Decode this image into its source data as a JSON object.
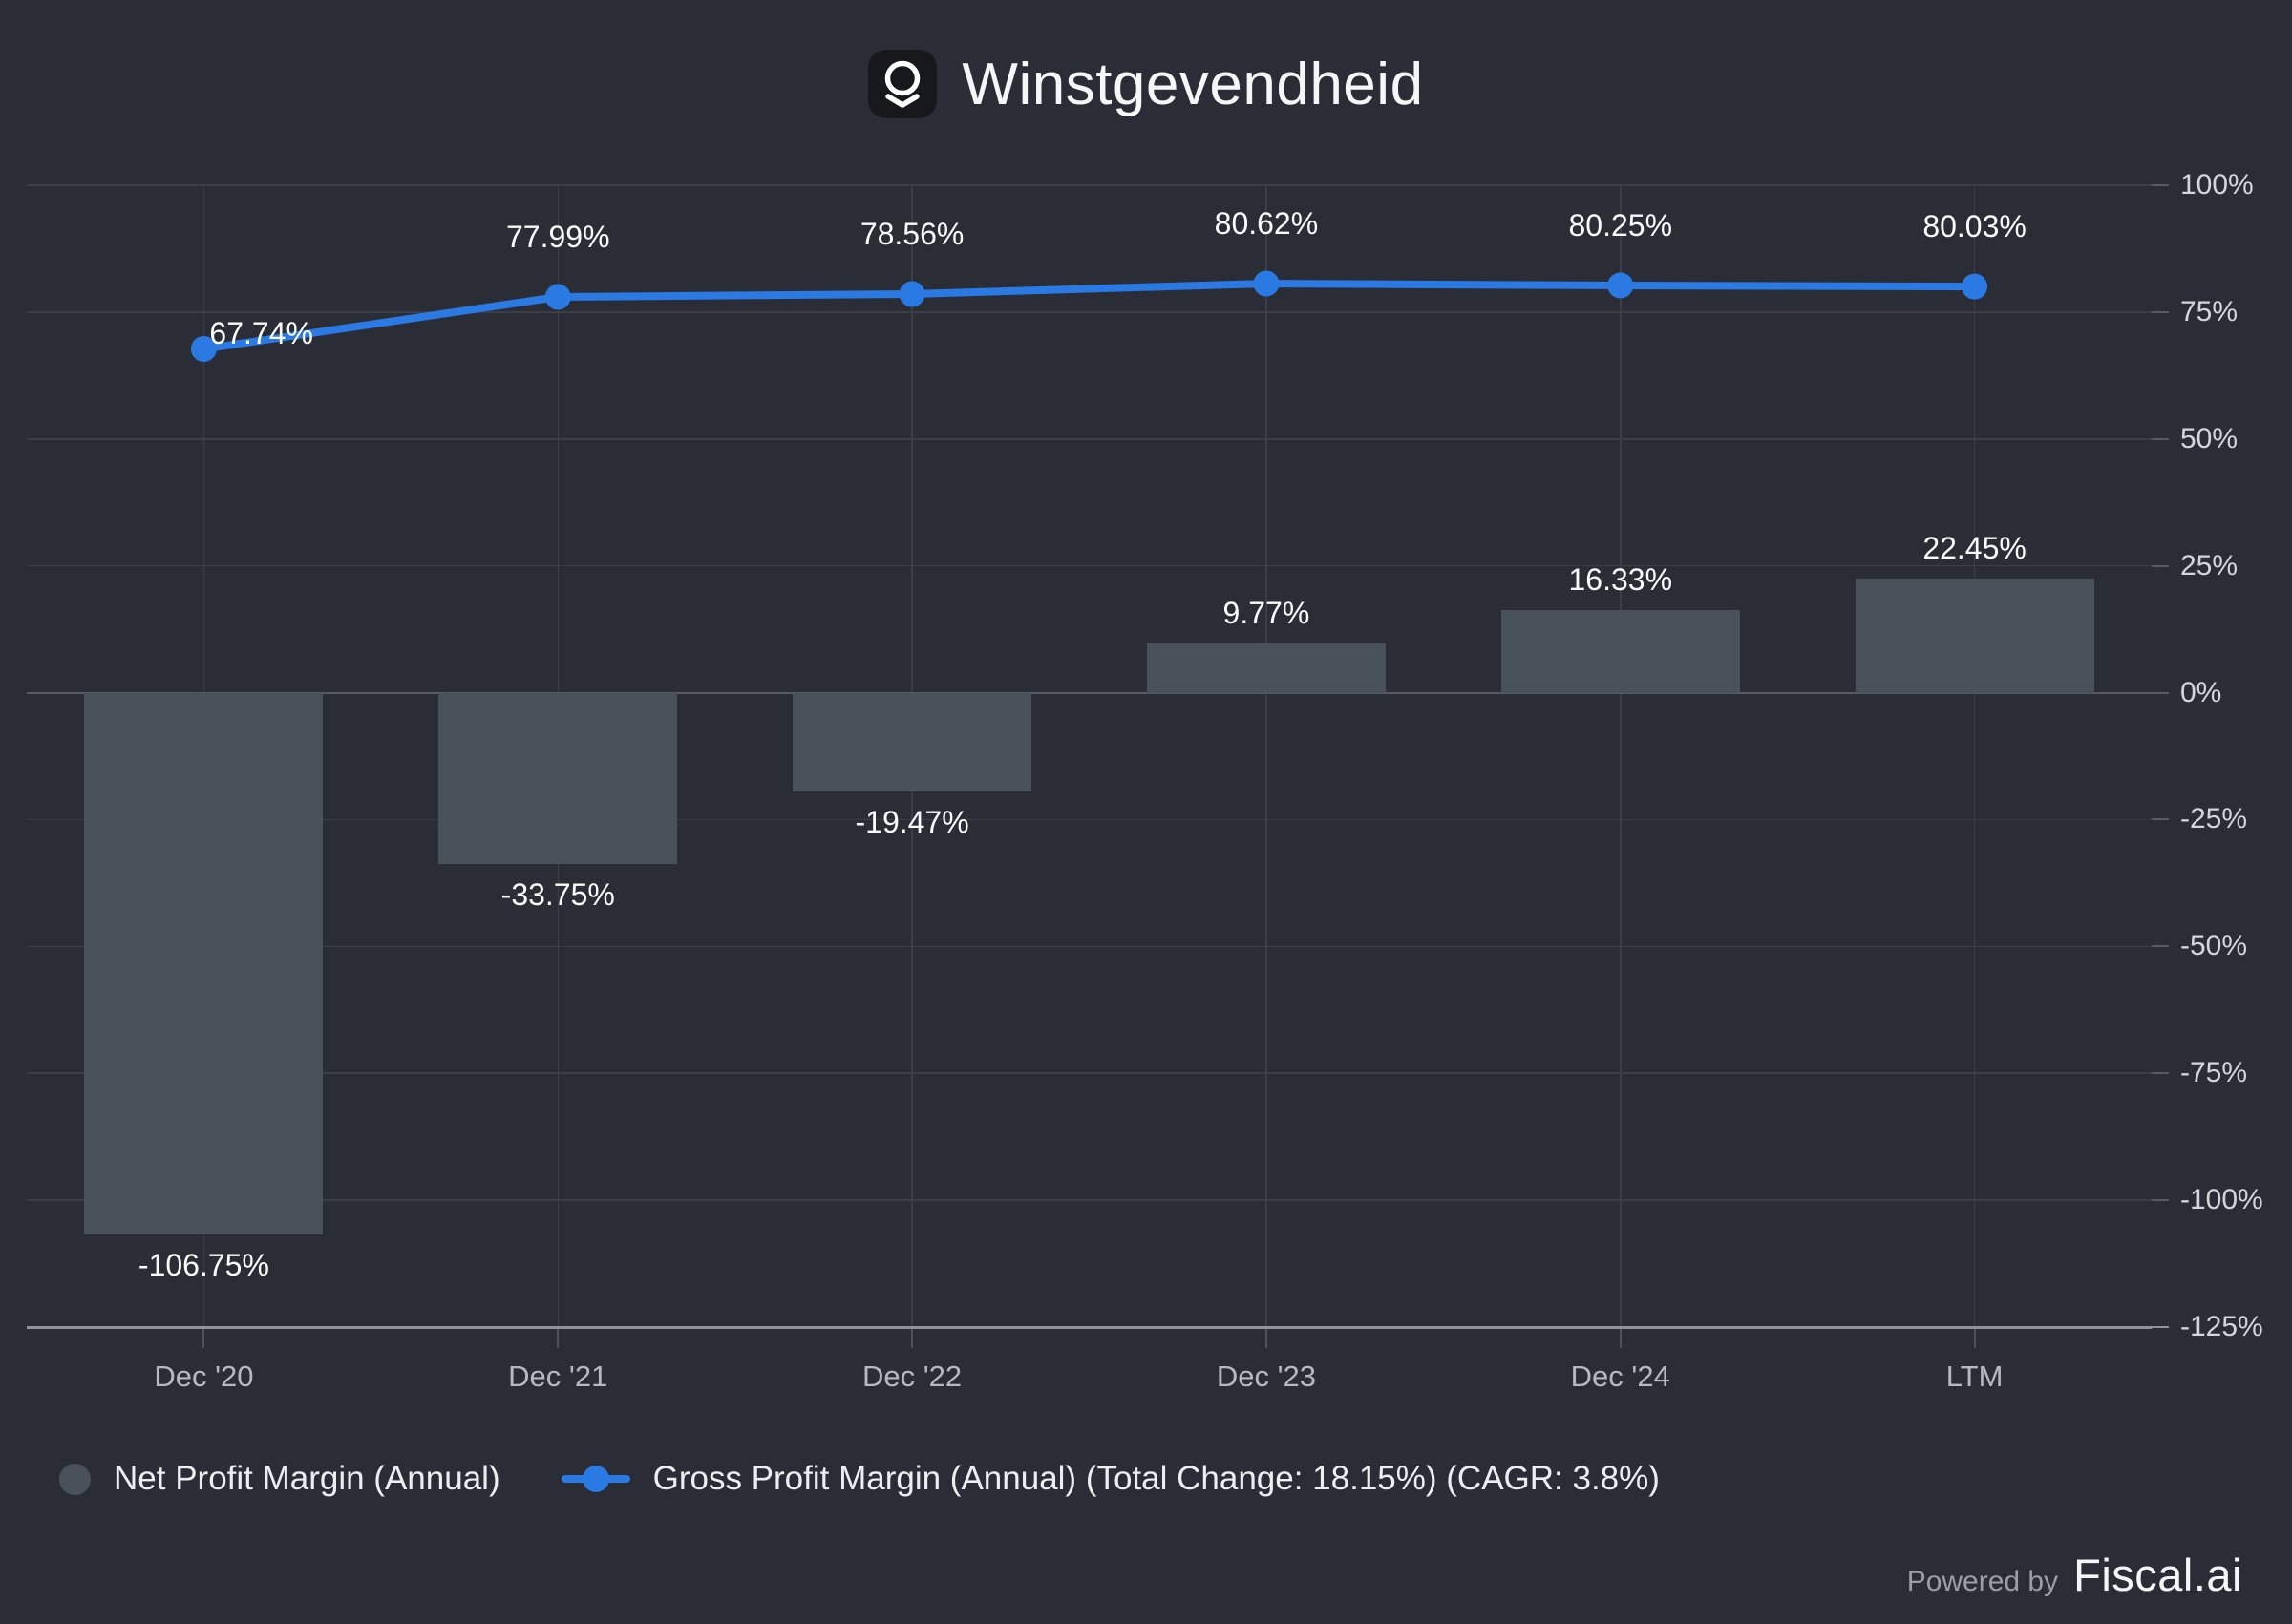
{
  "header": {
    "title": "Winstgevendheid"
  },
  "chart_data": {
    "type": "bar+line",
    "title": "Winstgevendheid",
    "categories": [
      "Dec '20",
      "Dec '21",
      "Dec '22",
      "Dec '23",
      "Dec '24",
      "LTM"
    ],
    "series": [
      {
        "name": "Net Profit Margin (Annual)",
        "type": "bar",
        "color": "#49525b",
        "values": [
          -106.75,
          -33.75,
          -19.47,
          9.77,
          16.33,
          22.45
        ],
        "labels": [
          "-106.75%",
          "-33.75%",
          "-19.47%",
          "9.77%",
          "16.33%",
          "22.45%"
        ]
      },
      {
        "name": "Gross Profit Margin (Annual) (Total Change: 18.15%) (CAGR: 3.8%)",
        "type": "line",
        "color": "#2b79e2",
        "values": [
          67.74,
          77.99,
          78.56,
          80.62,
          80.25,
          80.03
        ],
        "labels": [
          "67.74%",
          "77.99%",
          "78.56%",
          "80.62%",
          "80.25%",
          "80.03%"
        ]
      }
    ],
    "y_axis": {
      "position": "right",
      "range": [
        -125,
        100
      ],
      "ticks": [
        100,
        75,
        50,
        25,
        0,
        -25,
        -50,
        -75,
        -100,
        -125
      ],
      "tick_labels": [
        "100%",
        "75%",
        "50%",
        "25%",
        "0%",
        "-25%",
        "-50%",
        "-75%",
        "-100%",
        "-125%"
      ]
    },
    "grid": true,
    "legend_position": "bottom-left"
  },
  "colors": {
    "background": "#2a2d35",
    "bar": "#49525b",
    "line": "#2b79e2",
    "gridline": "#3a3e46",
    "zero_line": "#565b64",
    "axis_line": "#8f939b",
    "tick": "#4d515a",
    "y_label": "#d4d6db",
    "x_label": "#b6b9c0",
    "icon_bg": "#16181c"
  },
  "footer": {
    "powered_by_label": "Powered by",
    "brand": "Fiscal.ai"
  }
}
